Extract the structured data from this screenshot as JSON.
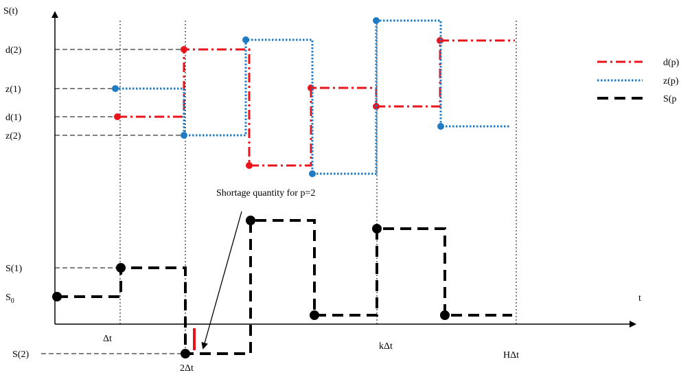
{
  "labels": {
    "y_axis": "S(t)",
    "x_axis": "t",
    "d2": "d(2)",
    "z1": "z(1)",
    "d1": "d(1)",
    "z2": "z(2)",
    "s1": "S(1)",
    "s0_base": "S",
    "s0_sub": "0",
    "s2": "S(2)",
    "dt": "Δt",
    "two_dt": "2Δt",
    "k_dt": "kΔt",
    "h_dt": "HΔt",
    "annotation": "Shortage quantity for p=2"
  },
  "legend": [
    {
      "label": "d(p)",
      "color": "#e8131b",
      "style": "dash-dot"
    },
    {
      "label": "z(p)",
      "color": "#1f7bc4",
      "style": "dotted"
    },
    {
      "label": "S(p",
      "color": "#000000",
      "style": "dashed"
    }
  ],
  "colors": {
    "d_series": "#e8131b",
    "z_series": "#1f7bc4",
    "s_series": "#000000",
    "axes": "#000000"
  }
}
